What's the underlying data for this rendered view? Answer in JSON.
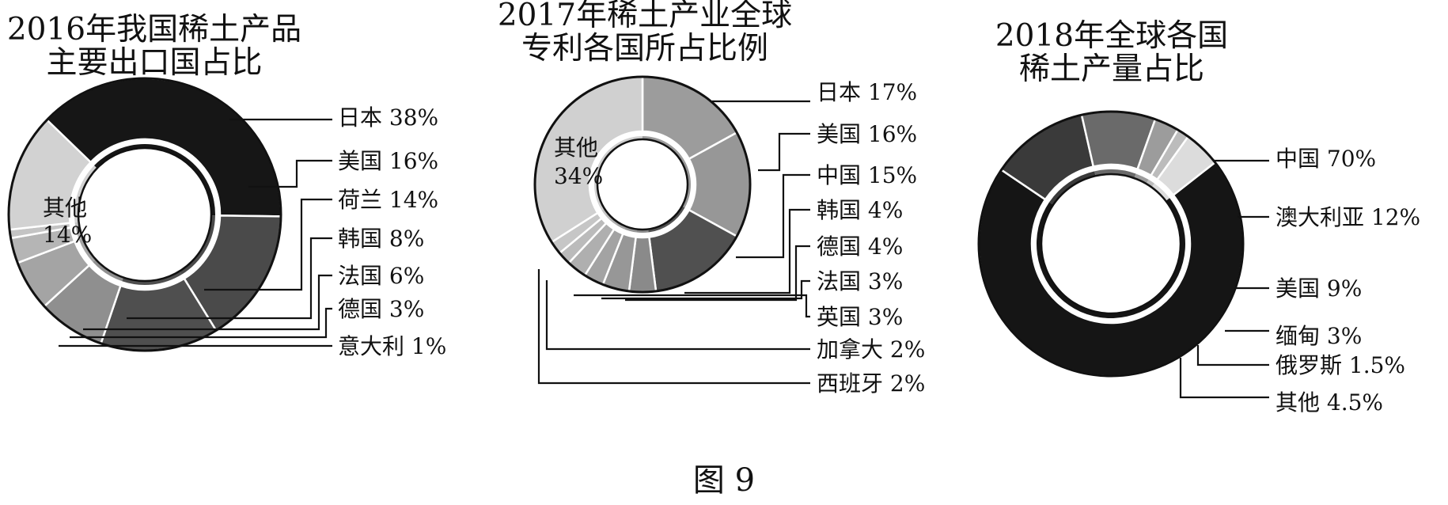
{
  "figure_caption": "图 9",
  "chart_data": [
    {
      "type": "pie",
      "title": "2016年我国稀土产品\n主要出口国占比",
      "categories": [
        "日本",
        "美国",
        "荷兰",
        "韩国",
        "法国",
        "德国",
        "意大利",
        "其他"
      ],
      "values": [
        38,
        16,
        14,
        8,
        6,
        3,
        1,
        14
      ],
      "value_labels": [
        "38%",
        "16%",
        "14%",
        "8%",
        "6%",
        "3%",
        "1%",
        "14%"
      ],
      "colors": [
        "#161616",
        "#4a4a4a",
        "#4f4f4f",
        "#8f8f8f",
        "#a4a4a4",
        "#b5b5b5",
        "#c4c4c4",
        "#d2d2d2"
      ]
    },
    {
      "type": "pie",
      "title": "2017年稀土产业全球\n专利各国所占比例",
      "categories": [
        "日本",
        "美国",
        "中国",
        "韩国",
        "德国",
        "法国",
        "英国",
        "加拿大",
        "西班牙",
        "其他"
      ],
      "values": [
        17,
        16,
        15,
        4,
        4,
        3,
        3,
        2,
        2,
        34
      ],
      "value_labels": [
        "17%",
        "16%",
        "15%",
        "4%",
        "4%",
        "3%",
        "3%",
        "2%",
        "2%",
        "34%"
      ],
      "colors": [
        "#9c9c9c",
        "#979797",
        "#505050",
        "#8a8a8a",
        "#979797",
        "#a3a3a3",
        "#afafaf",
        "#bbbbbb",
        "#c6c6c6",
        "#d0d0d0"
      ]
    },
    {
      "type": "pie",
      "title": "2018年全球各国\n稀土产量占比",
      "categories": [
        "中国",
        "澳大利亚",
        "美国",
        "缅甸",
        "俄罗斯",
        "其他"
      ],
      "values": [
        70,
        12,
        9,
        3,
        1.5,
        4.5
      ],
      "value_labels": [
        "70%",
        "12%",
        "9%",
        "3%",
        "1.5%",
        "4.5%"
      ],
      "colors": [
        "#151515",
        "#3a3a3a",
        "#6a6a6a",
        "#9c9c9c",
        "#bcbcbc",
        "#dcdcdc"
      ]
    }
  ]
}
